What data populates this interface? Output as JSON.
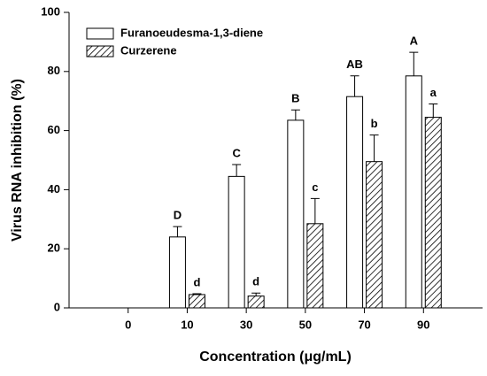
{
  "chart_data": {
    "type": "bar",
    "x_label": "Concentration (μg/mL)",
    "y_label": "Virus RNA inhibition (%)",
    "categories": [
      "0",
      "10",
      "30",
      "50",
      "70",
      "90"
    ],
    "series": [
      {
        "name": "Furanoeudesma-1,3-diene",
        "color": "#ffffff",
        "pattern": "solid",
        "values": [
          null,
          24,
          44.5,
          63.5,
          71.5,
          78.5
        ],
        "errors": [
          null,
          3.5,
          4,
          3.5,
          7,
          8
        ],
        "letters": [
          null,
          "D",
          "C",
          "B",
          "AB",
          "A"
        ]
      },
      {
        "name": "Curzerene",
        "color": "#ffffff",
        "pattern": "hatch",
        "values": [
          null,
          4.5,
          4,
          28.5,
          49.5,
          64.5
        ],
        "errors": [
          null,
          0.3,
          1,
          8.5,
          9,
          4.5
        ],
        "letters": [
          null,
          "d",
          "d",
          "c",
          "b",
          "a"
        ]
      }
    ],
    "ylim": [
      0,
      100
    ],
    "yticks": [
      0,
      20,
      40,
      60,
      80,
      100
    ],
    "legend": "upper-left"
  }
}
